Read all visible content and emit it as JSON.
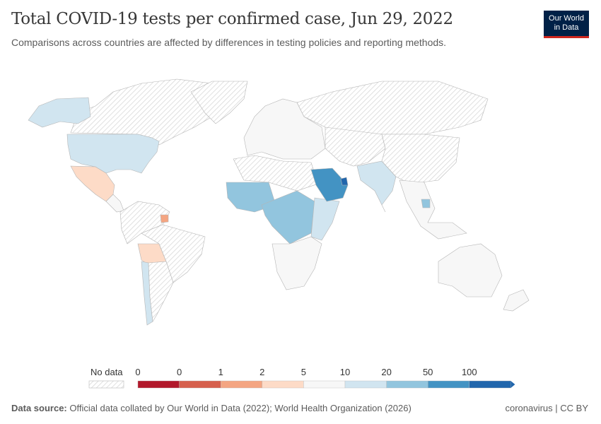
{
  "header": {
    "title": "Total COVID-19 tests per confirmed case, Jun 29, 2022",
    "subtitle": "Comparisons across countries are affected by differences in testing policies and reporting methods.",
    "logo_line1": "Our World",
    "logo_line2": "in Data"
  },
  "chart_data": {
    "type": "choropleth-map",
    "title": "Total COVID-19 tests per confirmed case, Jun 29, 2022",
    "legend": {
      "no_data_label": "No data",
      "bins": [
        "0",
        "0",
        "1",
        "2",
        "5",
        "10",
        "20",
        "50",
        "100"
      ],
      "colors": [
        "#b2182b",
        "#d6604d",
        "#f4a582",
        "#fddbc7",
        "#f7f7f7",
        "#d1e5f0",
        "#92c5de",
        "#4393c3",
        "#2166ac"
      ],
      "placement": "bottom"
    },
    "regions": [
      {
        "name": "Canada",
        "bin": "no data"
      },
      {
        "name": "Alaska (United States)",
        "bin": "10-20"
      },
      {
        "name": "United States",
        "bin": "10-20"
      },
      {
        "name": "Greenland",
        "bin": "no data"
      },
      {
        "name": "Mexico",
        "bin": "2-5"
      },
      {
        "name": "Central America",
        "bin": "5-10"
      },
      {
        "name": "Northern South America",
        "bin": "no data"
      },
      {
        "name": "Suriname",
        "bin": "1-2"
      },
      {
        "name": "Bolivia",
        "bin": "2-5"
      },
      {
        "name": "Brazil",
        "bin": "no data"
      },
      {
        "name": "Chile",
        "bin": "10-20"
      },
      {
        "name": "Argentina",
        "bin": "no data"
      },
      {
        "name": "Europe",
        "bin": "5-10"
      },
      {
        "name": "Russia",
        "bin": "no data"
      },
      {
        "name": "North Africa",
        "bin": "no data"
      },
      {
        "name": "West Africa",
        "bin": "20-50"
      },
      {
        "name": "Central Africa",
        "bin": "20-50"
      },
      {
        "name": "East Africa",
        "bin": "10-20"
      },
      {
        "name": "Southern Africa",
        "bin": "5-10"
      },
      {
        "name": "Saudi Arabia",
        "bin": "50-100"
      },
      {
        "name": "Qatar",
        "bin": "100+"
      },
      {
        "name": "Central Asia",
        "bin": "no data"
      },
      {
        "name": "India",
        "bin": "10-20"
      },
      {
        "name": "China",
        "bin": "no data"
      },
      {
        "name": "Southeast Asia",
        "bin": "5-10"
      },
      {
        "name": "Cambodia",
        "bin": "20-50"
      },
      {
        "name": "Australia",
        "bin": "5-10"
      },
      {
        "name": "New Zealand",
        "bin": "5-10"
      }
    ]
  },
  "footer": {
    "source_label": "Data source:",
    "source_text": "Official data collated by Our World in Data (2022); World Health Organization (2026)",
    "right": "coronavirus | CC BY"
  }
}
